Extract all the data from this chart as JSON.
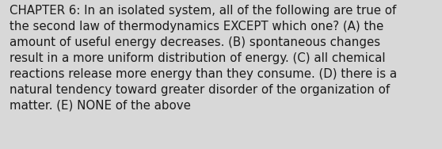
{
  "lines": [
    "CHAPTER 6: In an isolated system, all of the following are true of",
    "the second law of thermodynamics EXCEPT which one? (A) the",
    "amount of useful energy decreases. (B) spontaneous changes",
    "result in a more uniform distribution of energy. (C) all chemical",
    "reactions release more energy than they consume. (D) there is a",
    "natural tendency toward greater disorder of the organization of",
    "matter. (E) NONE of the above"
  ],
  "background_color": "#d8d8d8",
  "text_color": "#1a1a1a",
  "font_size": 10.8,
  "font_family": "DejaVu Sans",
  "fig_width": 5.58,
  "fig_height": 1.88,
  "dpi": 100
}
